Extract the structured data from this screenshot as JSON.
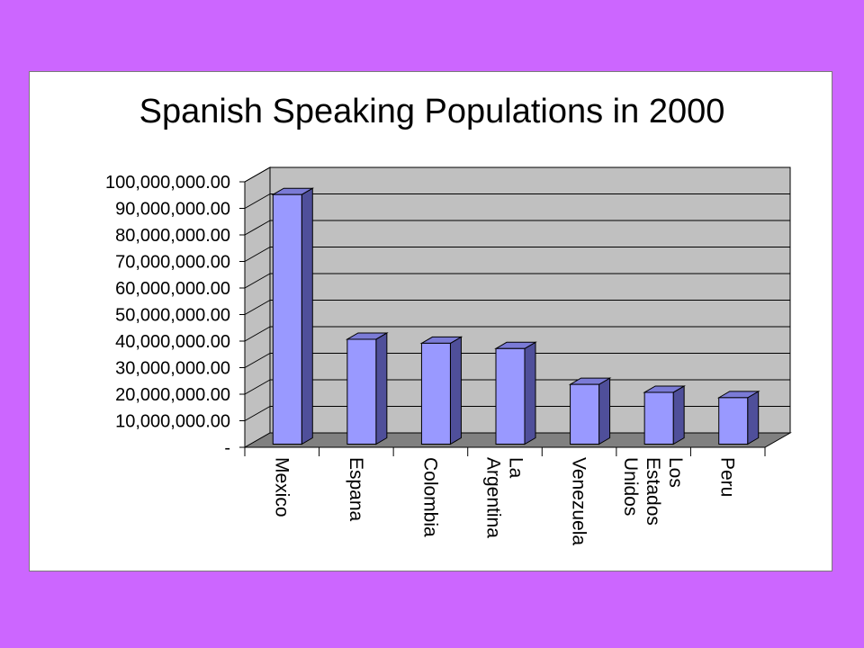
{
  "colors": {
    "background": "#cc66ff",
    "panel": "#ffffff",
    "wall": "#c0c0c0",
    "floor": "#808080",
    "bar_front": "#9999ff",
    "bar_top": "#7b7bd6",
    "bar_side": "#4f4f9a"
  },
  "chart_data": {
    "type": "bar",
    "title": "Spanish Speaking Populations in 2000",
    "xlabel": "",
    "ylabel": "",
    "ylim": [
      0,
      100000000
    ],
    "y_tick_labels": [
      "-",
      "10,000,000.00",
      "20,000,000.00",
      "30,000,000.00",
      "40,000,000.00",
      "50,000,000.00",
      "60,000,000.00",
      "70,000,000.00",
      "80,000,000.00",
      "90,000,000.00",
      "100,000,000.00"
    ],
    "categories": [
      {
        "label": [
          "Mexico"
        ]
      },
      {
        "label": [
          "Espana"
        ]
      },
      {
        "label": [
          "Colombia"
        ]
      },
      {
        "label": [
          "La",
          "Argentina"
        ]
      },
      {
        "label": [
          "Venezuela"
        ]
      },
      {
        "label": [
          "Los",
          "Estados",
          "Unidos"
        ]
      },
      {
        "label": [
          "Peru"
        ]
      }
    ],
    "values": [
      94000000,
      39500000,
      38000000,
      36000000,
      22500000,
      19500000,
      17500000
    ],
    "grid": true,
    "legend": "none",
    "style": "3d-column"
  }
}
